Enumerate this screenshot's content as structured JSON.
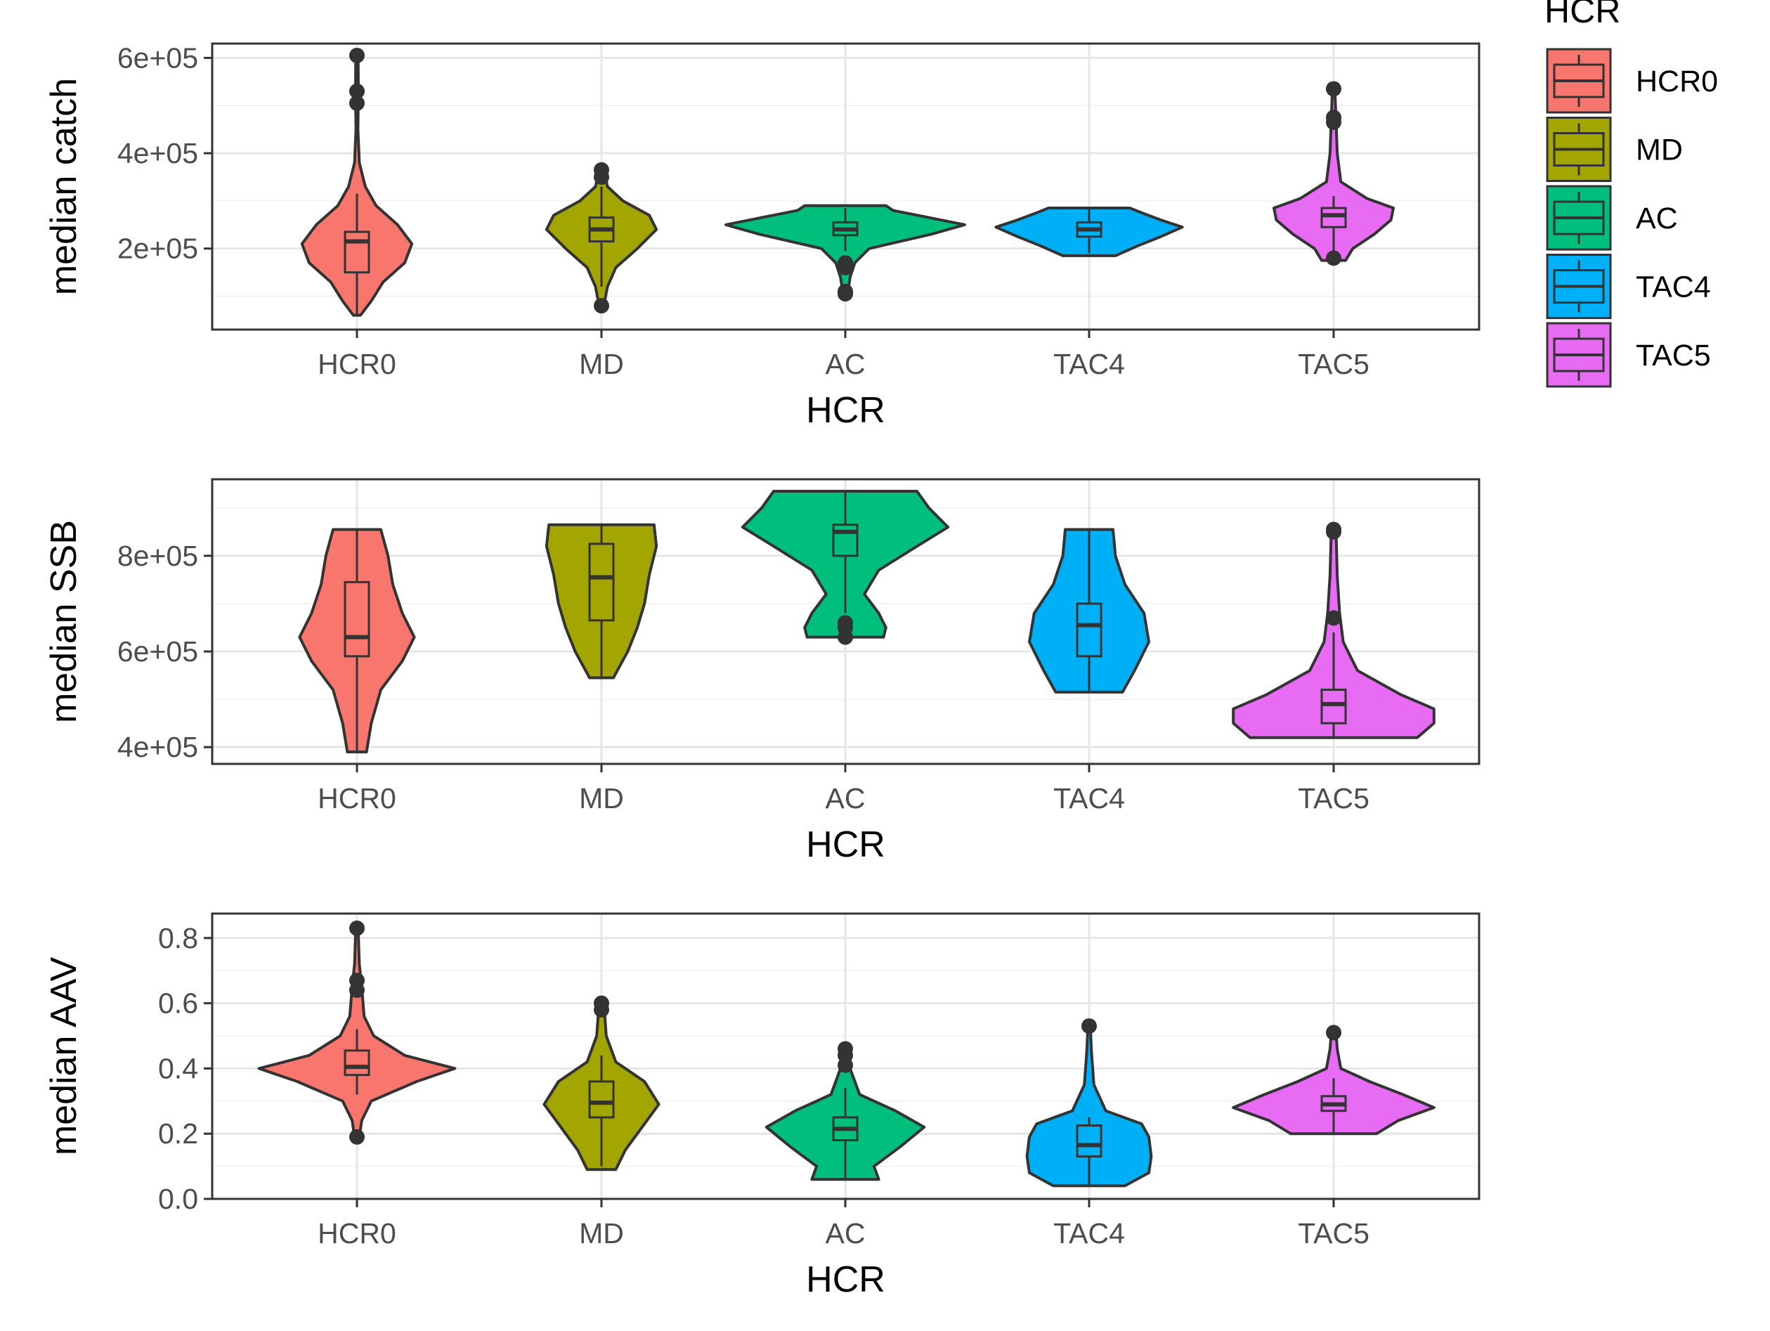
{
  "legend": {
    "title": "HCR",
    "items": [
      {
        "label": "HCR0",
        "color": "#F8766D"
      },
      {
        "label": "MD",
        "color": "#A3A500"
      },
      {
        "label": "AC",
        "color": "#00BF7D"
      },
      {
        "label": "TAC4",
        "color": "#00B0F6"
      },
      {
        "label": "TAC5",
        "color": "#E76BF3"
      }
    ]
  },
  "chart_data": [
    {
      "type": "violin",
      "xlabel": "HCR",
      "ylabel": "median catch",
      "categories": [
        "HCR0",
        "MD",
        "AC",
        "TAC4",
        "TAC5"
      ],
      "ylim": [
        30000,
        630000
      ],
      "yticks": [
        200000,
        400000,
        600000
      ],
      "yticklabels": [
        "2e+05",
        "4e+05",
        "6e+05"
      ],
      "grid": true,
      "series": [
        {
          "category": "HCR0",
          "color": "#F8766D",
          "boxplot": {
            "q1": 150000,
            "median": 215000,
            "q3": 235000,
            "whisker_low": 60000,
            "whisker_high": 315000
          },
          "outliers": [
            605000,
            530000,
            505000
          ],
          "violin": [
            [
              60000,
              0.03
            ],
            [
              90000,
              0.12
            ],
            [
              130000,
              0.22
            ],
            [
              170000,
              0.4
            ],
            [
              210000,
              0.46
            ],
            [
              250000,
              0.34
            ],
            [
              290000,
              0.16
            ],
            [
              330000,
              0.07
            ],
            [
              380000,
              0.02
            ],
            [
              450000,
              0.008
            ],
            [
              530000,
              0.012
            ],
            [
              605000,
              0.01
            ]
          ]
        },
        {
          "category": "MD",
          "color": "#A3A500",
          "boxplot": {
            "q1": 215000,
            "median": 240000,
            "q3": 265000,
            "whisker_low": 120000,
            "whisker_high": 330000
          },
          "outliers": [
            80000,
            350000,
            365000
          ],
          "violin": [
            [
              80000,
              0.02
            ],
            [
              120000,
              0.05
            ],
            [
              160000,
              0.12
            ],
            [
              200000,
              0.3
            ],
            [
              240000,
              0.46
            ],
            [
              270000,
              0.4
            ],
            [
              300000,
              0.18
            ],
            [
              330000,
              0.05
            ],
            [
              365000,
              0.02
            ]
          ]
        },
        {
          "category": "AC",
          "color": "#00BF7D",
          "boxplot": {
            "q1": 228000,
            "median": 240000,
            "q3": 255000,
            "whisker_low": 195000,
            "whisker_high": 285000
          },
          "outliers": [
            105000,
            110000,
            160000,
            170000
          ],
          "violin": [
            [
              105000,
              0.02
            ],
            [
              140000,
              0.04
            ],
            [
              170000,
              0.08
            ],
            [
              200000,
              0.2
            ],
            [
              230000,
              0.72
            ],
            [
              250000,
              1.0
            ],
            [
              265000,
              0.7
            ],
            [
              280000,
              0.4
            ],
            [
              290000,
              0.34
            ]
          ]
        },
        {
          "category": "TAC4",
          "color": "#00B0F6",
          "boxplot": {
            "q1": 225000,
            "median": 240000,
            "q3": 255000,
            "whisker_low": 190000,
            "whisker_high": 285000
          },
          "outliers": [],
          "violin": [
            [
              185000,
              0.22
            ],
            [
              205000,
              0.4
            ],
            [
              225000,
              0.6
            ],
            [
              245000,
              0.78
            ],
            [
              260000,
              0.6
            ],
            [
              275000,
              0.44
            ],
            [
              285000,
              0.34
            ]
          ]
        },
        {
          "category": "TAC5",
          "color": "#E76BF3",
          "boxplot": {
            "q1": 245000,
            "median": 270000,
            "q3": 285000,
            "whisker_low": 185000,
            "whisker_high": 310000
          },
          "outliers": [
            180000,
            465000,
            475000,
            535000
          ],
          "violin": [
            [
              175000,
              0.1
            ],
            [
              200000,
              0.16
            ],
            [
              230000,
              0.34
            ],
            [
              260000,
              0.48
            ],
            [
              285000,
              0.5
            ],
            [
              305000,
              0.28
            ],
            [
              340000,
              0.06
            ],
            [
              400000,
              0.03
            ],
            [
              470000,
              0.02
            ],
            [
              535000,
              0.01
            ]
          ]
        }
      ]
    },
    {
      "type": "violin",
      "xlabel": "HCR",
      "ylabel": "median SSB",
      "categories": [
        "HCR0",
        "MD",
        "AC",
        "TAC4",
        "TAC5"
      ],
      "ylim": [
        365000,
        960000
      ],
      "yticks": [
        400000,
        600000,
        800000
      ],
      "yticklabels": [
        "4e+05",
        "6e+05",
        "8e+05"
      ],
      "grid": true,
      "series": [
        {
          "category": "HCR0",
          "color": "#F8766D",
          "boxplot": {
            "q1": 590000,
            "median": 630000,
            "q3": 745000,
            "whisker_low": 390000,
            "whisker_high": 855000
          },
          "outliers": [],
          "violin": [
            [
              390000,
              0.08
            ],
            [
              450000,
              0.12
            ],
            [
              520000,
              0.2
            ],
            [
              580000,
              0.38
            ],
            [
              630000,
              0.48
            ],
            [
              680000,
              0.38
            ],
            [
              740000,
              0.3
            ],
            [
              800000,
              0.26
            ],
            [
              855000,
              0.2
            ]
          ]
        },
        {
          "category": "MD",
          "color": "#A3A500",
          "boxplot": {
            "q1": 665000,
            "median": 755000,
            "q3": 825000,
            "whisker_low": 545000,
            "whisker_high": 865000
          },
          "outliers": [],
          "violin": [
            [
              545000,
              0.1
            ],
            [
              600000,
              0.22
            ],
            [
              650000,
              0.3
            ],
            [
              700000,
              0.36
            ],
            [
              760000,
              0.4
            ],
            [
              820000,
              0.46
            ],
            [
              865000,
              0.44
            ]
          ]
        },
        {
          "category": "AC",
          "color": "#00BF7D",
          "boxplot": {
            "q1": 800000,
            "median": 850000,
            "q3": 865000,
            "whisker_low": 680000,
            "whisker_high": 935000
          },
          "outliers": [
            630000,
            650000,
            660000
          ],
          "violin": [
            [
              630000,
              0.32
            ],
            [
              650000,
              0.34
            ],
            [
              680000,
              0.28
            ],
            [
              720000,
              0.16
            ],
            [
              770000,
              0.28
            ],
            [
              820000,
              0.6
            ],
            [
              860000,
              0.86
            ],
            [
              900000,
              0.7
            ],
            [
              935000,
              0.6
            ]
          ]
        },
        {
          "category": "TAC4",
          "color": "#00B0F6",
          "boxplot": {
            "q1": 590000,
            "median": 655000,
            "q3": 700000,
            "whisker_low": 515000,
            "whisker_high": 855000
          },
          "outliers": [],
          "violin": [
            [
              515000,
              0.28
            ],
            [
              560000,
              0.38
            ],
            [
              620000,
              0.5
            ],
            [
              680000,
              0.46
            ],
            [
              740000,
              0.3
            ],
            [
              800000,
              0.22
            ],
            [
              855000,
              0.2
            ]
          ]
        },
        {
          "category": "TAC5",
          "color": "#E76BF3",
          "boxplot": {
            "q1": 450000,
            "median": 490000,
            "q3": 520000,
            "whisker_low": 420000,
            "whisker_high": 640000
          },
          "outliers": [
            670000,
            850000,
            855000
          ],
          "violin": [
            [
              420000,
              0.7
            ],
            [
              450000,
              0.84
            ],
            [
              480000,
              0.84
            ],
            [
              510000,
              0.56
            ],
            [
              560000,
              0.2
            ],
            [
              620000,
              0.08
            ],
            [
              680000,
              0.05
            ],
            [
              760000,
              0.03
            ],
            [
              855000,
              0.02
            ]
          ]
        }
      ]
    },
    {
      "type": "violin",
      "xlabel": "HCR",
      "ylabel": "median AAV",
      "categories": [
        "HCR0",
        "MD",
        "AC",
        "TAC4",
        "TAC5"
      ],
      "ylim": [
        0.0,
        0.875
      ],
      "yticks": [
        0.0,
        0.2,
        0.4,
        0.6,
        0.8
      ],
      "yticklabels": [
        "0.0",
        "0.2",
        "0.4",
        "0.6",
        "0.8"
      ],
      "grid": true,
      "series": [
        {
          "category": "HCR0",
          "color": "#F8766D",
          "boxplot": {
            "q1": 0.38,
            "median": 0.405,
            "q3": 0.455,
            "whisker_low": 0.32,
            "whisker_high": 0.52
          },
          "outliers": [
            0.19,
            0.64,
            0.67,
            0.83
          ],
          "violin": [
            [
              0.19,
              0.02
            ],
            [
              0.24,
              0.04
            ],
            [
              0.3,
              0.12
            ],
            [
              0.36,
              0.5
            ],
            [
              0.4,
              0.82
            ],
            [
              0.44,
              0.4
            ],
            [
              0.5,
              0.14
            ],
            [
              0.56,
              0.06
            ],
            [
              0.65,
              0.04
            ],
            [
              0.72,
              0.02
            ],
            [
              0.83,
              0.01
            ]
          ]
        },
        {
          "category": "MD",
          "color": "#A3A500",
          "boxplot": {
            "q1": 0.25,
            "median": 0.295,
            "q3": 0.36,
            "whisker_low": 0.1,
            "whisker_high": 0.44
          },
          "outliers": [
            0.58,
            0.6
          ],
          "violin": [
            [
              0.09,
              0.12
            ],
            [
              0.15,
              0.2
            ],
            [
              0.22,
              0.34
            ],
            [
              0.29,
              0.48
            ],
            [
              0.36,
              0.36
            ],
            [
              0.42,
              0.12
            ],
            [
              0.5,
              0.04
            ],
            [
              0.6,
              0.02
            ]
          ]
        },
        {
          "category": "AC",
          "color": "#00BF7D",
          "boxplot": {
            "q1": 0.18,
            "median": 0.215,
            "q3": 0.25,
            "whisker_low": 0.06,
            "whisker_high": 0.34
          },
          "outliers": [
            0.41,
            0.44,
            0.46
          ],
          "violin": [
            [
              0.06,
              0.28
            ],
            [
              0.1,
              0.24
            ],
            [
              0.16,
              0.46
            ],
            [
              0.22,
              0.66
            ],
            [
              0.27,
              0.42
            ],
            [
              0.32,
              0.12
            ],
            [
              0.4,
              0.04
            ],
            [
              0.47,
              0.02
            ]
          ]
        },
        {
          "category": "TAC4",
          "color": "#00B0F6",
          "boxplot": {
            "q1": 0.13,
            "median": 0.165,
            "q3": 0.225,
            "whisker_low": 0.04,
            "whisker_high": 0.25
          },
          "outliers": [
            0.53
          ],
          "violin": [
            [
              0.04,
              0.3
            ],
            [
              0.08,
              0.5
            ],
            [
              0.13,
              0.52
            ],
            [
              0.19,
              0.5
            ],
            [
              0.23,
              0.44
            ],
            [
              0.27,
              0.14
            ],
            [
              0.35,
              0.04
            ],
            [
              0.45,
              0.02
            ],
            [
              0.53,
              0.01
            ]
          ]
        },
        {
          "category": "TAC5",
          "color": "#E76BF3",
          "boxplot": {
            "q1": 0.27,
            "median": 0.29,
            "q3": 0.315,
            "whisker_low": 0.2,
            "whisker_high": 0.37
          },
          "outliers": [
            0.51
          ],
          "violin": [
            [
              0.2,
              0.36
            ],
            [
              0.24,
              0.54
            ],
            [
              0.28,
              0.84
            ],
            [
              0.32,
              0.58
            ],
            [
              0.36,
              0.3
            ],
            [
              0.4,
              0.06
            ],
            [
              0.46,
              0.03
            ],
            [
              0.51,
              0.02
            ]
          ]
        }
      ]
    }
  ]
}
